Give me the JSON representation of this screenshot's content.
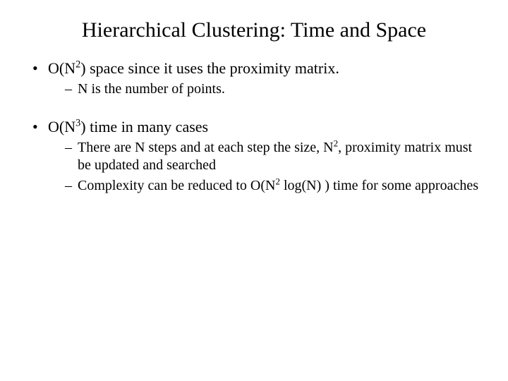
{
  "title": "Hierarchical Clustering:  Time and Space",
  "bullets": [
    {
      "main_pre": "O(N",
      "main_sup": "2",
      "main_post": ") space since it uses the proximity matrix.",
      "subs": [
        {
          "text": "N is the number of points."
        }
      ]
    },
    {
      "main_pre": "O(N",
      "main_sup": "3",
      "main_post": ") time in many cases",
      "subs": [
        {
          "pre": "There are N steps and at each step the size, N",
          "sup": "2",
          "post": ", proximity matrix must be updated and searched"
        },
        {
          "pre": "Complexity can be reduced to O(N",
          "sup": "2",
          "post": " log(N) ) time for some approaches"
        }
      ]
    }
  ],
  "colors": {
    "background": "#ffffff",
    "text": "#000000"
  },
  "fonts": {
    "family": "Times New Roman",
    "title_size_pt": 30,
    "body_size_pt": 22,
    "sub_size_pt": 20
  }
}
